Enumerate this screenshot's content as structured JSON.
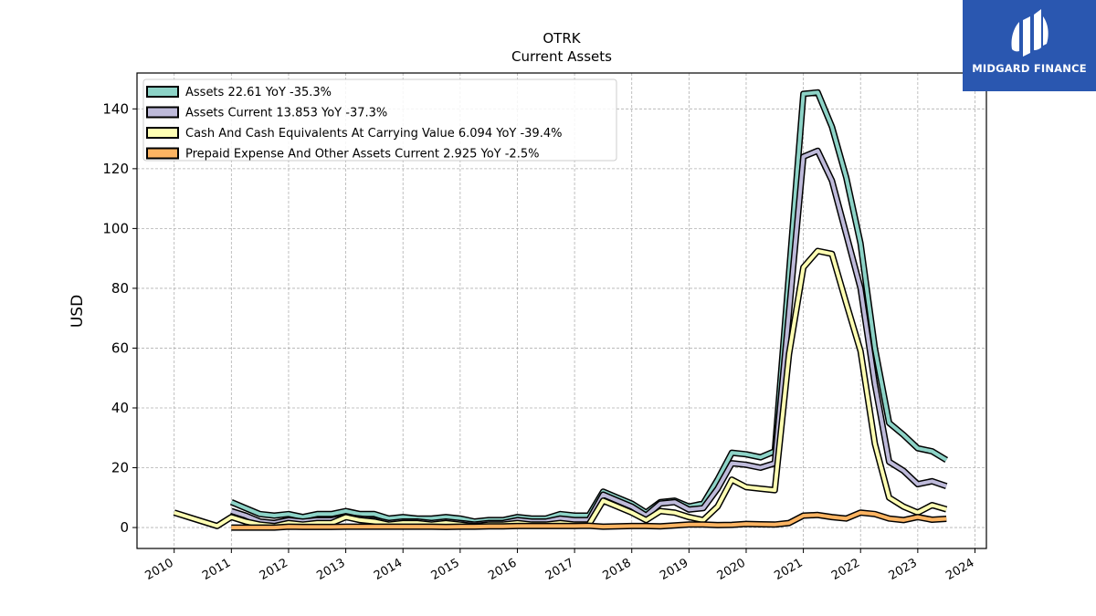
{
  "chart_data": {
    "type": "line",
    "title": "OTRK",
    "subtitle": "Current  Assets",
    "ylabel": "USD",
    "xlabel": "",
    "ylim": [
      -7,
      152
    ],
    "xlim": [
      2009.35,
      2024.2
    ],
    "yticks": [
      0,
      20,
      40,
      60,
      80,
      100,
      120,
      140
    ],
    "xticks": [
      "2010",
      "2011",
      "2012",
      "2013",
      "2014",
      "2015",
      "2016",
      "2017",
      "2018",
      "2019",
      "2020",
      "2021",
      "2022",
      "2023",
      "2024"
    ],
    "grid": true,
    "legend_position": "top-left",
    "series": [
      {
        "name": "Assets  22.61 YoY -35.3%",
        "color": "#8dd3c7",
        "points": [
          [
            2011.0,
            8.5
          ],
          [
            2011.25,
            6.5
          ],
          [
            2011.5,
            4.5
          ],
          [
            2011.75,
            4.0
          ],
          [
            2012.0,
            4.5
          ],
          [
            2012.25,
            3.5
          ],
          [
            2012.5,
            4.5
          ],
          [
            2012.75,
            4.5
          ],
          [
            2013.0,
            5.5
          ],
          [
            2013.25,
            4.5
          ],
          [
            2013.5,
            4.5
          ],
          [
            2013.75,
            3.0
          ],
          [
            2014.0,
            3.5
          ],
          [
            2014.25,
            3.0
          ],
          [
            2014.5,
            3.0
          ],
          [
            2014.75,
            3.5
          ],
          [
            2015.0,
            3.0
          ],
          [
            2015.25,
            2.0
          ],
          [
            2015.5,
            2.5
          ],
          [
            2015.75,
            2.5
          ],
          [
            2016.0,
            3.5
          ],
          [
            2016.25,
            3.0
          ],
          [
            2016.5,
            3.0
          ],
          [
            2016.75,
            4.5
          ],
          [
            2017.0,
            4.0
          ],
          [
            2017.25,
            4.0
          ],
          [
            2017.5,
            12.0
          ],
          [
            2017.75,
            10.0
          ],
          [
            2018.0,
            8.0
          ],
          [
            2018.25,
            5.0
          ],
          [
            2018.5,
            8.5
          ],
          [
            2018.75,
            9.0
          ],
          [
            2019.0,
            7.0
          ],
          [
            2019.25,
            8.0
          ],
          [
            2019.5,
            16.0
          ],
          [
            2019.75,
            25.0
          ],
          [
            2020.0,
            24.5
          ],
          [
            2020.25,
            23.5
          ],
          [
            2020.5,
            25.5
          ],
          [
            2020.75,
            85.0
          ],
          [
            2021.0,
            145.0
          ],
          [
            2021.25,
            145.5
          ],
          [
            2021.5,
            134.0
          ],
          [
            2021.75,
            117.0
          ],
          [
            2022.0,
            95.0
          ],
          [
            2022.25,
            60.0
          ],
          [
            2022.5,
            35.0
          ],
          [
            2022.75,
            31.0
          ],
          [
            2023.0,
            26.5
          ],
          [
            2023.25,
            25.5
          ],
          [
            2023.5,
            22.61
          ]
        ]
      },
      {
        "name": "Assets Current  13.853 YoY -37.3%",
        "color": "#bebada",
        "points": [
          [
            2011.0,
            5.5
          ],
          [
            2011.25,
            4.0
          ],
          [
            2011.5,
            2.0
          ],
          [
            2011.75,
            1.5
          ],
          [
            2012.0,
            2.5
          ],
          [
            2012.25,
            2.0
          ],
          [
            2012.5,
            2.5
          ],
          [
            2012.75,
            2.5
          ],
          [
            2013.0,
            3.5
          ],
          [
            2013.25,
            3.0
          ],
          [
            2013.5,
            2.5
          ],
          [
            2013.75,
            1.5
          ],
          [
            2014.0,
            2.0
          ],
          [
            2014.25,
            2.0
          ],
          [
            2014.5,
            1.5
          ],
          [
            2014.75,
            2.0
          ],
          [
            2015.0,
            1.5
          ],
          [
            2015.25,
            1.0
          ],
          [
            2015.5,
            1.5
          ],
          [
            2015.75,
            1.5
          ],
          [
            2016.0,
            2.5
          ],
          [
            2016.25,
            2.0
          ],
          [
            2016.5,
            2.0
          ],
          [
            2016.75,
            3.0
          ],
          [
            2017.0,
            2.5
          ],
          [
            2017.25,
            2.5
          ],
          [
            2017.5,
            11.0
          ],
          [
            2017.75,
            9.0
          ],
          [
            2018.0,
            7.0
          ],
          [
            2018.25,
            4.0
          ],
          [
            2018.5,
            8.0
          ],
          [
            2018.75,
            8.5
          ],
          [
            2019.0,
            6.0
          ],
          [
            2019.25,
            6.5
          ],
          [
            2019.5,
            13.0
          ],
          [
            2019.75,
            21.5
          ],
          [
            2020.0,
            21.0
          ],
          [
            2020.25,
            20.0
          ],
          [
            2020.5,
            21.5
          ],
          [
            2020.75,
            72.0
          ],
          [
            2021.0,
            124.0
          ],
          [
            2021.25,
            126.0
          ],
          [
            2021.5,
            116.0
          ],
          [
            2021.75,
            98.0
          ],
          [
            2022.0,
            80.0
          ],
          [
            2022.25,
            48.0
          ],
          [
            2022.5,
            22.0
          ],
          [
            2022.75,
            19.0
          ],
          [
            2023.0,
            14.5
          ],
          [
            2023.25,
            15.5
          ],
          [
            2023.5,
            13.853
          ]
        ]
      },
      {
        "name": "Cash And Cash Equivalents At Carrying Value  6.094 YoY -39.4%",
        "color": "#ffffb3",
        "points": [
          [
            2010.0,
            5.0
          ],
          [
            2010.25,
            3.5
          ],
          [
            2010.5,
            2.0
          ],
          [
            2010.75,
            0.5
          ],
          [
            2011.0,
            3.5
          ],
          [
            2011.25,
            2.0
          ],
          [
            2011.5,
            1.0
          ],
          [
            2011.75,
            0.5
          ],
          [
            2012.0,
            1.5
          ],
          [
            2012.25,
            1.0
          ],
          [
            2012.5,
            1.5
          ],
          [
            2012.75,
            1.5
          ],
          [
            2013.0,
            3.5
          ],
          [
            2013.25,
            2.5
          ],
          [
            2013.5,
            2.0
          ],
          [
            2013.75,
            1.0
          ],
          [
            2014.0,
            1.5
          ],
          [
            2014.25,
            1.5
          ],
          [
            2014.5,
            1.0
          ],
          [
            2014.75,
            1.5
          ],
          [
            2015.0,
            1.0
          ],
          [
            2015.25,
            0.5
          ],
          [
            2015.5,
            1.0
          ],
          [
            2015.75,
            1.0
          ],
          [
            2016.0,
            1.5
          ],
          [
            2016.25,
            1.0
          ],
          [
            2016.5,
            1.0
          ],
          [
            2016.75,
            1.5
          ],
          [
            2017.0,
            1.0
          ],
          [
            2017.25,
            1.0
          ],
          [
            2017.5,
            9.0
          ],
          [
            2017.75,
            7.0
          ],
          [
            2018.0,
            5.0
          ],
          [
            2018.25,
            2.5
          ],
          [
            2018.5,
            5.5
          ],
          [
            2018.75,
            5.0
          ],
          [
            2019.0,
            3.5
          ],
          [
            2019.25,
            2.5
          ],
          [
            2019.5,
            7.0
          ],
          [
            2019.75,
            16.0
          ],
          [
            2020.0,
            13.5
          ],
          [
            2020.25,
            13.0
          ],
          [
            2020.5,
            12.5
          ],
          [
            2020.75,
            58.0
          ],
          [
            2021.0,
            87.0
          ],
          [
            2021.25,
            92.5
          ],
          [
            2021.5,
            91.5
          ],
          [
            2021.75,
            75.0
          ],
          [
            2022.0,
            59.0
          ],
          [
            2022.25,
            28.0
          ],
          [
            2022.5,
            10.0
          ],
          [
            2022.75,
            7.0
          ],
          [
            2023.0,
            5.0
          ],
          [
            2023.25,
            7.5
          ],
          [
            2023.5,
            6.094
          ]
        ]
      },
      {
        "name": "Prepaid Expense And Other Assets Current  2.925 YoY -2.5%",
        "color": "#fdb462",
        "points": [
          [
            2011.0,
            0.0
          ],
          [
            2011.25,
            0.0
          ],
          [
            2011.5,
            0.0
          ],
          [
            2011.75,
            0.0
          ],
          [
            2012.0,
            0.3
          ],
          [
            2012.25,
            0.2
          ],
          [
            2012.5,
            0.2
          ],
          [
            2012.75,
            0.2
          ],
          [
            2013.0,
            0.3
          ],
          [
            2013.25,
            0.3
          ],
          [
            2013.5,
            0.3
          ],
          [
            2013.75,
            0.3
          ],
          [
            2014.0,
            0.3
          ],
          [
            2014.25,
            0.3
          ],
          [
            2014.5,
            0.3
          ],
          [
            2014.75,
            0.2
          ],
          [
            2015.0,
            0.3
          ],
          [
            2015.25,
            0.3
          ],
          [
            2015.5,
            0.4
          ],
          [
            2015.75,
            0.4
          ],
          [
            2016.0,
            0.5
          ],
          [
            2016.25,
            0.5
          ],
          [
            2016.5,
            0.5
          ],
          [
            2016.75,
            0.5
          ],
          [
            2017.0,
            0.5
          ],
          [
            2017.25,
            0.6
          ],
          [
            2017.5,
            0.3
          ],
          [
            2017.75,
            0.4
          ],
          [
            2018.0,
            0.5
          ],
          [
            2018.25,
            0.5
          ],
          [
            2018.5,
            0.4
          ],
          [
            2018.75,
            0.7
          ],
          [
            2019.0,
            1.0
          ],
          [
            2019.25,
            1.0
          ],
          [
            2019.5,
            0.8
          ],
          [
            2019.75,
            0.9
          ],
          [
            2020.0,
            1.2
          ],
          [
            2020.25,
            1.1
          ],
          [
            2020.5,
            1.0
          ],
          [
            2020.75,
            1.5
          ],
          [
            2021.0,
            4.0
          ],
          [
            2021.25,
            4.2
          ],
          [
            2021.5,
            3.5
          ],
          [
            2021.75,
            3.0
          ],
          [
            2022.0,
            5.0
          ],
          [
            2022.25,
            4.5
          ],
          [
            2022.5,
            3.0
          ],
          [
            2022.75,
            2.5
          ],
          [
            2023.0,
            3.5
          ],
          [
            2023.25,
            2.6
          ],
          [
            2023.5,
            2.925
          ]
        ]
      }
    ]
  },
  "branding": {
    "logo_text": "MIDGARD FINANCE",
    "logo_color": "#2a57b0"
  }
}
